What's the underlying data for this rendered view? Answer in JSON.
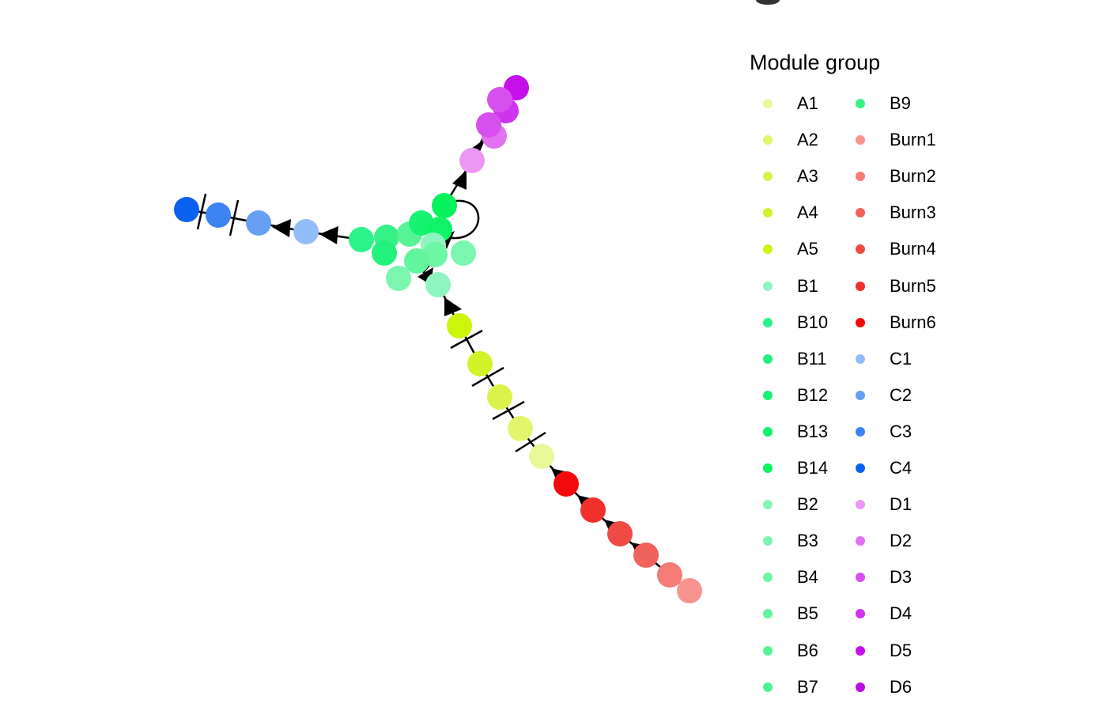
{
  "legend": {
    "title": "Module group",
    "items": [
      {
        "label": "A1",
        "color": "#e8f99a"
      },
      {
        "label": "A2",
        "color": "#e2f56c"
      },
      {
        "label": "A3",
        "color": "#dbf24a"
      },
      {
        "label": "A4",
        "color": "#d3f22a"
      },
      {
        "label": "A5",
        "color": "#ccf50a"
      },
      {
        "label": "B1",
        "color": "#8ff5c0"
      },
      {
        "label": "B10",
        "color": "#2cf28a"
      },
      {
        "label": "B11",
        "color": "#22f27d"
      },
      {
        "label": "B12",
        "color": "#16f371"
      },
      {
        "label": "B13",
        "color": "#0ff467"
      },
      {
        "label": "B14",
        "color": "#06f35e"
      },
      {
        "label": "B2",
        "color": "#86f7b8"
      },
      {
        "label": "B3",
        "color": "#7af6ae"
      },
      {
        "label": "B4",
        "color": "#6ef5a6"
      },
      {
        "label": "B5",
        "color": "#62f59d"
      },
      {
        "label": "B6",
        "color": "#57f495"
      },
      {
        "label": "B7",
        "color": "#4cf38f"
      },
      {
        "label": "B9",
        "color": "#36f286"
      },
      {
        "label": "Burn1",
        "color": "#f7948e"
      },
      {
        "label": "Burn2",
        "color": "#f47b76"
      },
      {
        "label": "Burn3",
        "color": "#f2625d"
      },
      {
        "label": "Burn4",
        "color": "#f04a45"
      },
      {
        "label": "Burn5",
        "color": "#f1302c"
      },
      {
        "label": "Burn6",
        "color": "#f40a0a"
      },
      {
        "label": "C1",
        "color": "#93bdf8"
      },
      {
        "label": "C2",
        "color": "#66a0f5"
      },
      {
        "label": "C3",
        "color": "#3b84f2"
      },
      {
        "label": "C4",
        "color": "#0b62f0"
      },
      {
        "label": "D1",
        "color": "#eb98f5"
      },
      {
        "label": "D2",
        "color": "#e172f2"
      },
      {
        "label": "D3",
        "color": "#d84fef"
      },
      {
        "label": "D4",
        "color": "#cf34ee"
      },
      {
        "label": "D5",
        "color": "#c510ec"
      },
      {
        "label": "D6",
        "color": "#b90ee0"
      }
    ]
  }
}
